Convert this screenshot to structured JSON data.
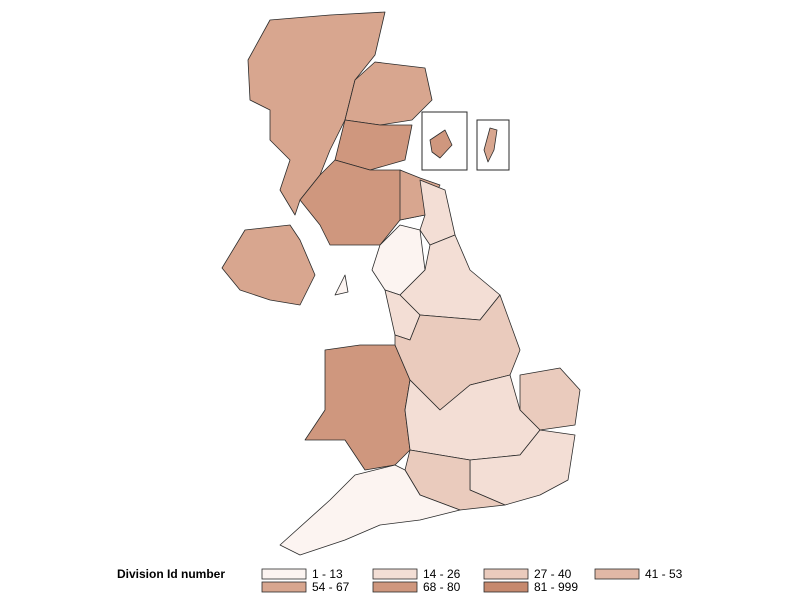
{
  "legend": {
    "title": "Division Id number",
    "classes": [
      {
        "label": "1 - 13",
        "color": "#fcf4f1"
      },
      {
        "label": "14 - 26",
        "color": "#f3ded5"
      },
      {
        "label": "27 - 40",
        "color": "#eacbbd"
      },
      {
        "label": "41 - 53",
        "color": "#e1b8a6"
      },
      {
        "label": "54 - 67",
        "color": "#d8a68f"
      },
      {
        "label": "68 - 80",
        "color": "#cf977e"
      },
      {
        "label": "81 - 999",
        "color": "#c6896e"
      }
    ]
  }
}
